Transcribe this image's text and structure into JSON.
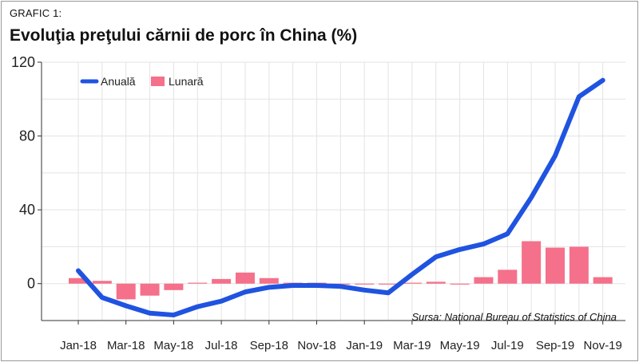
{
  "header": {
    "label": "GRAFIC 1:",
    "title": "Evoluţia preţului cărnii de porc în China (%)"
  },
  "colors": {
    "annual": "#1f53e0",
    "monthly": "#f5708a",
    "grid": "#e3e3e3"
  },
  "chart_data": {
    "type": "line",
    "title": "Evoluţia preţului cărnii de porc în China (%)",
    "source": "Sursa: National Bureau of Statistics of China",
    "x": [
      "Jan-18",
      "Feb-18",
      "Mar-18",
      "Apr-18",
      "May-18",
      "Jun-18",
      "Jul-18",
      "Aug-18",
      "Sep-18",
      "Oct-18",
      "Nov-18",
      "Dec-18",
      "Jan-19",
      "Feb-19",
      "Mar-19",
      "Apr-19",
      "May-19",
      "Jun-19",
      "Jul-19",
      "Aug-19",
      "Sep-19",
      "Oct-19",
      "Nov-19"
    ],
    "tick_labels": [
      "Jan-18",
      "Mar-18",
      "May-18",
      "Jul-18",
      "Sep-18",
      "Nov-18",
      "Jan-19",
      "Mar-19",
      "May-19",
      "Jul-19",
      "Sep-19",
      "Nov-19"
    ],
    "ylim": [
      -20,
      120
    ],
    "yticks": [
      0,
      40,
      80,
      120
    ],
    "legend_position": "top-left",
    "grid": true,
    "series": [
      {
        "name": "Anuală",
        "type": "line",
        "values": [
          7.0,
          -7.5,
          -12.0,
          -16.0,
          -17.0,
          -12.5,
          -9.5,
          -4.5,
          -2.0,
          -1.0,
          -1.0,
          -1.5,
          -3.5,
          -5.0,
          5.0,
          14.5,
          18.5,
          21.5,
          27.0,
          46.7,
          69.3,
          101.3,
          110.2
        ]
      },
      {
        "name": "Lunară",
        "type": "bar",
        "values": [
          3.0,
          1.5,
          -8.5,
          -6.5,
          -3.5,
          0.5,
          2.5,
          6.0,
          3.0,
          0.5,
          0.5,
          -0.5,
          -0.5,
          -0.5,
          0.5,
          1.0,
          -0.5,
          3.5,
          7.5,
          23.0,
          19.5,
          20.0,
          3.5
        ]
      }
    ]
  }
}
